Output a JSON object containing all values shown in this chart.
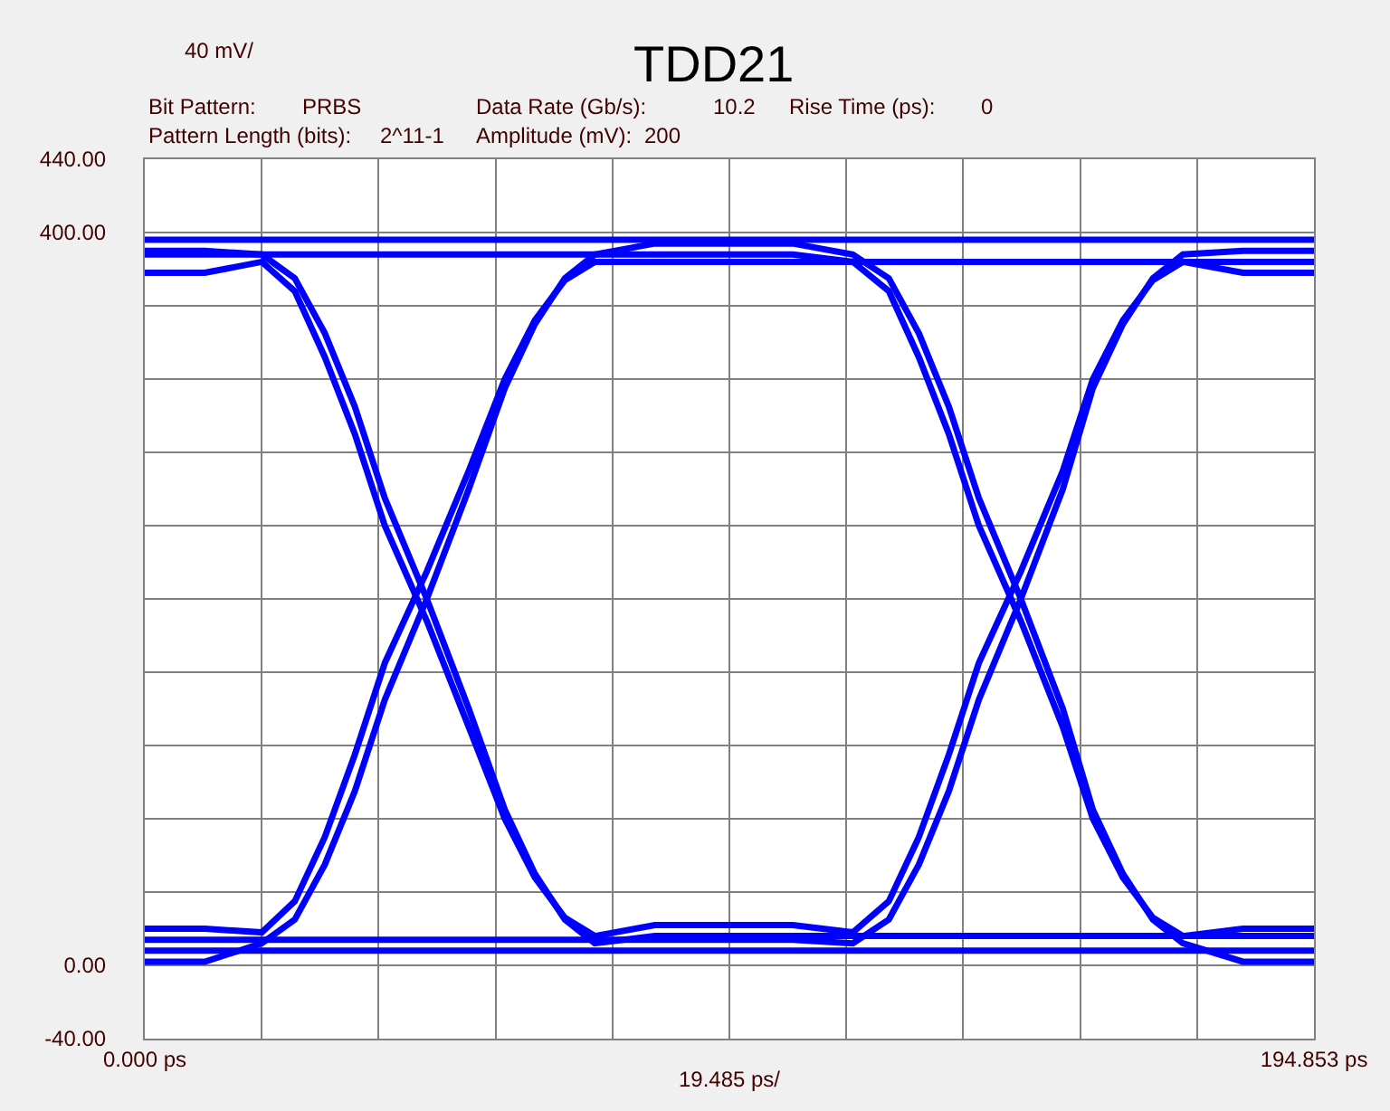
{
  "chart_data": {
    "type": "line",
    "title": "TDD21",
    "annotations": [
      "40 mV/",
      "Bit Pattern:",
      "PRBS",
      "Data Rate (Gb/s):",
      "10.2",
      "Rise Time (ps):",
      "0",
      "Pattern Length (bits):",
      "2^11-1",
      "Amplitude (mV):",
      "200"
    ],
    "xlabel": "19.485 ps/",
    "x": [
      0,
      10,
      19.5,
      25,
      30,
      35,
      40,
      47,
      54,
      60,
      65,
      70,
      75,
      85,
      96.5,
      108,
      118,
      124,
      129,
      134,
      139,
      146,
      153,
      158,
      163,
      168,
      173,
      183,
      194.853
    ],
    "series": [
      {
        "color": "#0000ff",
        "values": [
          8,
          8,
          8,
          8,
          8,
          8,
          8,
          8,
          8,
          8,
          8,
          8,
          8,
          8,
          8,
          8,
          8,
          8,
          8,
          8,
          8,
          8,
          8,
          8,
          8,
          8,
          8,
          8,
          8
        ]
      },
      {
        "color": "#0000ff",
        "values": [
          396,
          396,
          396,
          396,
          396,
          396,
          396,
          396,
          396,
          396,
          396,
          396,
          396,
          396,
          396,
          396,
          396,
          396,
          396,
          396,
          396,
          396,
          396,
          396,
          396,
          396,
          396,
          396,
          396
        ]
      },
      {
        "color": "#0000ff",
        "values": [
          2,
          2,
          12,
          25,
          55,
          95,
          145,
          200,
          260,
          315,
          350,
          375,
          388,
          394,
          394,
          394,
          388,
          375,
          345,
          305,
          255,
          200,
          140,
          85,
          50,
          25,
          12,
          2,
          2
        ]
      },
      {
        "color": "#0000ff",
        "values": [
          378,
          378,
          384,
          368,
          332,
          290,
          240,
          188,
          130,
          80,
          48,
          26,
          16,
          22,
          22,
          22,
          18,
          35,
          70,
          115,
          165,
          215,
          270,
          320,
          352,
          374,
          384,
          378,
          378
        ]
      },
      {
        "color": "#0000ff",
        "values": [
          14,
          14,
          14,
          14,
          14,
          14,
          14,
          14,
          14,
          14,
          14,
          14,
          14,
          14,
          14,
          14,
          12,
          25,
          55,
          95,
          145,
          200,
          260,
          315,
          350,
          375,
          388,
          390,
          390
        ]
      },
      {
        "color": "#0000ff",
        "values": [
          390,
          390,
          388,
          375,
          345,
          305,
          255,
          200,
          140,
          85,
          50,
          25,
          12,
          16,
          16,
          16,
          16,
          16,
          16,
          16,
          16,
          16,
          16,
          16,
          16,
          16,
          16,
          16,
          16
        ]
      },
      {
        "color": "#0000ff",
        "values": [
          20,
          20,
          18,
          35,
          70,
          115,
          165,
          215,
          270,
          320,
          352,
          374,
          384,
          384,
          384,
          384,
          384,
          384,
          384,
          384,
          384,
          384,
          384,
          384,
          384,
          384,
          384,
          384,
          384
        ]
      },
      {
        "color": "#0000ff",
        "values": [
          388,
          388,
          388,
          388,
          388,
          388,
          388,
          388,
          388,
          388,
          388,
          388,
          388,
          388,
          388,
          388,
          384,
          368,
          332,
          290,
          240,
          188,
          130,
          80,
          48,
          26,
          16,
          20,
          20
        ]
      }
    ],
    "xlim": [
      0,
      194.853
    ],
    "xticks": [
      {
        "value": 0,
        "label": "0.000 ps"
      },
      {
        "value": 19.485,
        "label": null
      },
      {
        "value": 38.971,
        "label": null
      },
      {
        "value": 58.456,
        "label": null
      },
      {
        "value": 77.941,
        "label": null
      },
      {
        "value": 97.427,
        "label": null
      },
      {
        "value": 116.912,
        "label": null
      },
      {
        "value": 136.397,
        "label": null
      },
      {
        "value": 155.882,
        "label": null
      },
      {
        "value": 175.368,
        "label": null
      },
      {
        "value": 194.853,
        "label": "194.853 ps"
      }
    ],
    "ylim": [
      -40,
      440
    ],
    "yticks": [
      {
        "value": -40,
        "label": "-40.00"
      },
      {
        "value": 0,
        "label": "0.00"
      },
      {
        "value": 40,
        "label": null
      },
      {
        "value": 80,
        "label": null
      },
      {
        "value": 120,
        "label": null
      },
      {
        "value": 160,
        "label": null
      },
      {
        "value": 200,
        "label": null
      },
      {
        "value": 240,
        "label": null
      },
      {
        "value": 280,
        "label": null
      },
      {
        "value": 320,
        "label": null
      },
      {
        "value": 360,
        "label": null
      },
      {
        "value": 400,
        "label": "400.00"
      },
      {
        "value": 440,
        "label": "440.00"
      }
    ],
    "grid": true,
    "line_style": "solid"
  }
}
